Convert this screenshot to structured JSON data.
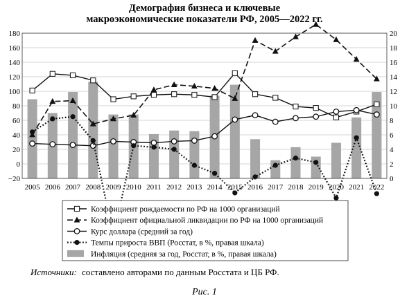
{
  "chart_data": {
    "type": "bar+line",
    "title_line1": "Демография бизнеса и ключевые",
    "title_line2": "макроэкономические показатели РФ, 2005—2022 гг.",
    "categories": [
      "2005",
      "2006",
      "2007",
      "2008",
      "2009",
      "2010",
      "2011",
      "2012",
      "2013",
      "2014",
      "2015",
      "2016",
      "2017",
      "2018",
      "2019",
      "2020",
      "2021",
      "2022"
    ],
    "left_axis": {
      "min": -20,
      "max": 180,
      "ticks": [
        "−20",
        "0",
        "20",
        "40",
        "60",
        "80",
        "100",
        "120",
        "140",
        "160",
        "180"
      ]
    },
    "right_axis": {
      "min": 0,
      "max": 20,
      "ticks": [
        "0",
        "2",
        "4",
        "6",
        "8",
        "10",
        "12",
        "14",
        "16",
        "18",
        "20"
      ]
    },
    "grid": true,
    "series": [
      {
        "name": "Коэффициент рождаемости по РФ на 1000 организаций",
        "axis": "left",
        "kind": "line",
        "style": "solid",
        "marker": "square",
        "values": [
          101,
          124,
          122,
          115,
          89,
          93,
          95,
          96,
          95,
          92,
          125,
          96,
          91,
          79,
          77,
          64,
          72,
          82
        ]
      },
      {
        "name": "Коэффициент официальной ликвидации по РФ на 1000 организаций",
        "axis": "left",
        "kind": "line",
        "style": "dashed",
        "marker": "triangle",
        "values": [
          40,
          86,
          87,
          55,
          62,
          67,
          102,
          109,
          107,
          104,
          90,
          170,
          155,
          175,
          192,
          171,
          144,
          117
        ]
      },
      {
        "name": "Курс доллара (средний за год)",
        "axis": "left",
        "kind": "line",
        "style": "solid",
        "marker": "circle-open",
        "values": [
          28,
          27,
          26,
          25,
          31,
          30,
          29,
          31,
          32,
          38,
          61,
          67,
          58,
          63,
          65,
          72,
          74,
          68
        ]
      },
      {
        "name": "Темпы прироста ВВП (Росстат, в %, правая шкала)",
        "axis": "right",
        "kind": "line",
        "style": "dotted",
        "marker": "dot",
        "values": [
          6.4,
          8.2,
          8.5,
          5.2,
          -7.8,
          4.5,
          4.3,
          4.0,
          1.8,
          0.7,
          -2.0,
          0.2,
          1.8,
          2.8,
          2.2,
          -2.7,
          5.6,
          -2.1
        ]
      },
      {
        "name": "Инфляция (средняя за год, Росстат, в %, правая шкала)",
        "axis": "right",
        "kind": "bar",
        "color": "#a6a6a6",
        "values": [
          10.9,
          9.0,
          11.9,
          13.3,
          8.8,
          8.8,
          6.1,
          6.6,
          6.5,
          11.4,
          12.9,
          5.4,
          2.5,
          4.3,
          3.0,
          4.9,
          8.4,
          11.9
        ]
      }
    ]
  },
  "sources_label": "Источники:",
  "sources_text": "составлено авторами по данным Росстата и ЦБ РФ.",
  "caption": "Рис. 1"
}
